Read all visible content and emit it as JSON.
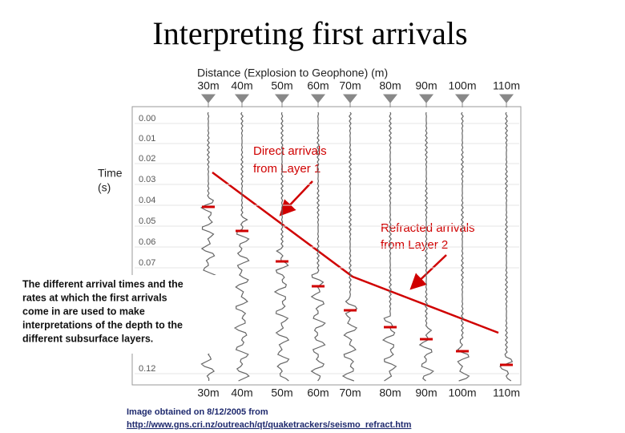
{
  "title": "Interpreting first arrivals",
  "figure": {
    "distance_heading": "Distance (Explosion to Geophone) (m)",
    "distances": [
      "30m",
      "40m",
      "50m",
      "60m",
      "70m",
      "80m",
      "90m",
      "100m",
      "110m"
    ],
    "time_heading": [
      "Time",
      "(s)"
    ],
    "times": [
      "0.00",
      "0.01",
      "0.02",
      "0.03",
      "0.04",
      "0.05",
      "0.06",
      "0.07",
      "0.12"
    ],
    "annotations": {
      "direct": [
        "Direct arrivals",
        "from Layer 1"
      ],
      "refracted": [
        "Refracted arrivals",
        "from Layer 2"
      ]
    }
  },
  "explanation": [
    "The different arrival times and the",
    "rates at which the first arrivals",
    "come in are used to make",
    "interpretations of the depth to the",
    "different subsurface layers."
  ],
  "caption": [
    "Image obtained on 8/12/2005 from",
    "http://www.gns.cri.nz/outreach/qt/quaketrackers/seismo_refract.htm"
  ]
}
